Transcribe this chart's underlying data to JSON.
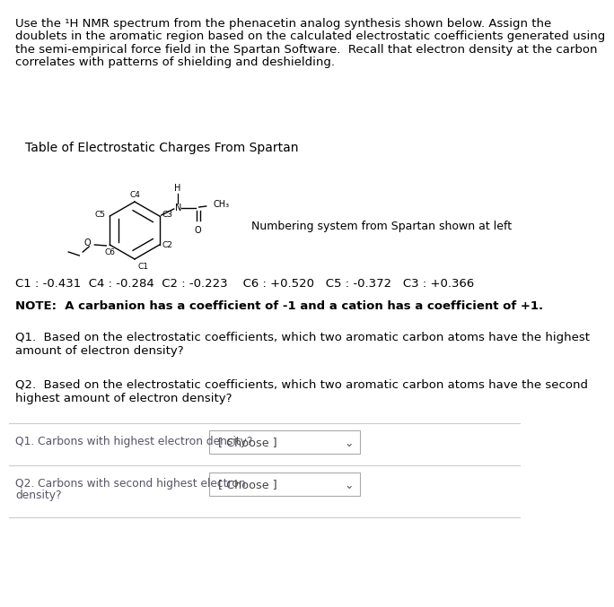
{
  "bg_color": "#ffffff",
  "intro_text_lines": [
    "Use the ¹H NMR spectrum from the phenacetin analog synthesis shown below. Assign the",
    "doublets in the aromatic region based on the calculated electrostatic coefficients generated using",
    "the semi-empirical force field in the Spartan Software.  Recall that electron density at the carbon",
    "correlates with patterns of shielding and deshielding."
  ],
  "table_title": "Table of Electrostatic Charges From Spartan",
  "numbering_label": "Numbering system from Spartan shown at left",
  "charges_line": "C1 : -0.431  C4 : -0.284  C2 : -0.223    C6 : +0.520   C5 : -0.372   C3 : +0.366",
  "note_text": "NOTE:  A carbanion has a coefficient of -1 and a cation has a coefficient of +1.",
  "q1_text_lines": [
    "Q1.  Based on the electrostatic coefficients, which two aromatic carbon atoms have the highest",
    "amount of electron density?"
  ],
  "q2_text_lines": [
    "Q2.  Based on the electrostatic coefficients, which two aromatic carbon atoms have the second",
    "highest amount of electron density?"
  ],
  "q1_label": "Q1. Carbons with highest electron density?",
  "q2_label_lines": [
    "Q2. Carbons with second highest electron",
    "density?"
  ],
  "dropdown_text": "[ Choose ]",
  "text_color": "#000000",
  "border_color": "#cccccc",
  "dropdown_border": "#aaaaaa",
  "label_color": "#555566",
  "font_size_intro": 9.5,
  "font_size_table_title": 10.0,
  "font_size_charges": 9.5,
  "font_size_note": 9.5,
  "font_size_q": 9.5,
  "font_size_label": 8.8,
  "font_size_dropdown": 9.2,
  "font_size_chem": 7.0,
  "font_size_chem_label": 6.5
}
